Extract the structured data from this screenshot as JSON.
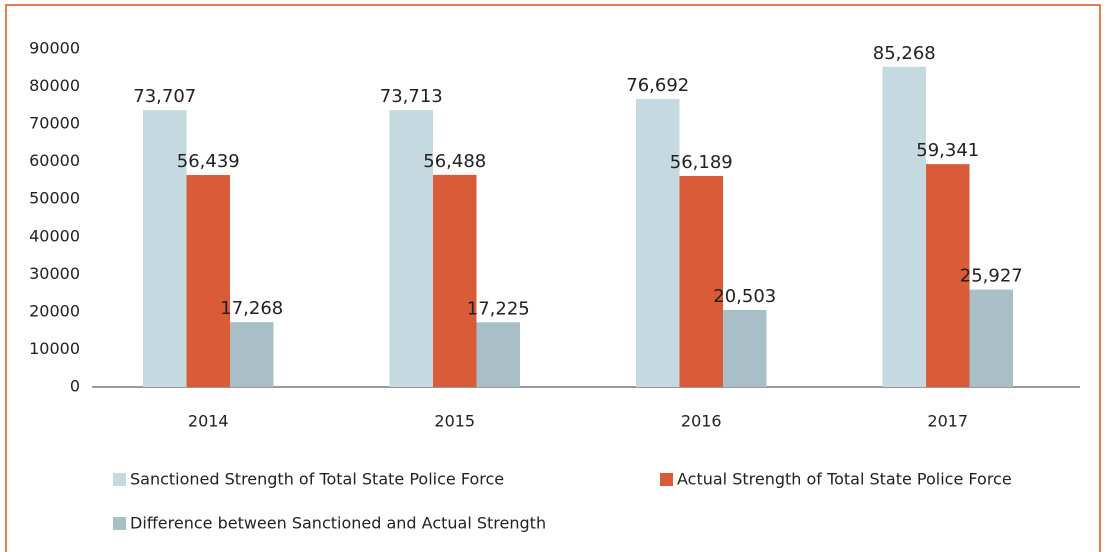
{
  "chart_data": {
    "type": "bar",
    "categories": [
      "2014",
      "2015",
      "2016",
      "2017"
    ],
    "series": [
      {
        "name": "Sanctioned Strength of Total State Police Force",
        "color": "#c5d9e1",
        "values": [
          73707,
          73713,
          76692,
          85268
        ],
        "value_labels": [
          "73,707",
          "73,713",
          "76,692",
          "85,268"
        ]
      },
      {
        "name": "Actual Strength of Total State Police Force",
        "color": "#d95b37",
        "values": [
          56439,
          56488,
          56189,
          59341
        ],
        "value_labels": [
          "56,439",
          "56,488",
          "56,189",
          "59,341"
        ]
      },
      {
        "name": "Difference between Sanctioned and Actual Strength",
        "color": "#a9bfc8",
        "values": [
          17268,
          17225,
          20503,
          25927
        ],
        "value_labels": [
          "17,268",
          "17,225",
          "20,503",
          "25,927"
        ]
      }
    ],
    "ylim": [
      0,
      90000
    ],
    "yticks": [
      0,
      10000,
      20000,
      30000,
      40000,
      50000,
      60000,
      70000,
      80000,
      90000
    ],
    "grid": false,
    "legend": "bottom"
  }
}
